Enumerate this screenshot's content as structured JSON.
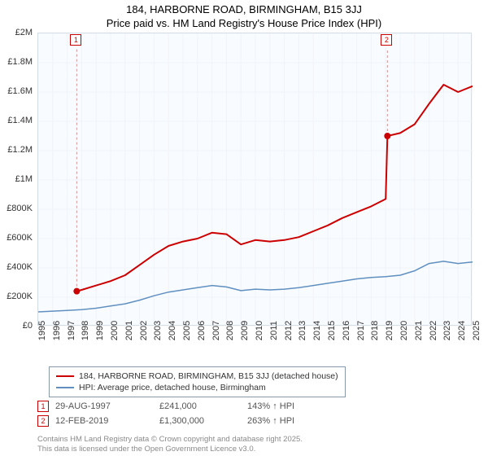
{
  "title_main": "184, HARBORNE ROAD, BIRMINGHAM, B15 3JJ",
  "title_sub": "Price paid vs. HM Land Registry's House Price Index (HPI)",
  "background_color": "#ffffff",
  "plot_bg": "#f8fbff",
  "plot_border": "#d5dde5",
  "grid_color": "#f0f3f7",
  "chart": {
    "type": "line",
    "xlim": [
      1995,
      2025
    ],
    "ylim": [
      0,
      2000000
    ],
    "y_ticks": [
      0,
      200000,
      400000,
      600000,
      800000,
      1000000,
      1200000,
      1400000,
      1600000,
      1800000,
      2000000
    ],
    "y_tick_labels": [
      "£0",
      "£200K",
      "£400K",
      "£600K",
      "£800K",
      "£1M",
      "£1.2M",
      "£1.4M",
      "£1.6M",
      "£1.8M",
      "£2M"
    ],
    "x_ticks": [
      1995,
      1996,
      1997,
      1998,
      1999,
      2000,
      2001,
      2002,
      2003,
      2004,
      2005,
      2006,
      2007,
      2008,
      2009,
      2010,
      2011,
      2012,
      2013,
      2014,
      2015,
      2016,
      2017,
      2018,
      2019,
      2020,
      2021,
      2022,
      2023,
      2024,
      2025
    ],
    "series": [
      {
        "name": "price_paid",
        "label": "184, HARBORNE ROAD, BIRMINGHAM, B15 3JJ (detached house)",
        "color": "#cc0000",
        "line_width": 2,
        "points": [
          [
            1997.66,
            241000
          ],
          [
            1998,
            250000
          ],
          [
            1999,
            280000
          ],
          [
            2000,
            310000
          ],
          [
            2001,
            350000
          ],
          [
            2002,
            420000
          ],
          [
            2003,
            490000
          ],
          [
            2004,
            550000
          ],
          [
            2005,
            580000
          ],
          [
            2006,
            600000
          ],
          [
            2007,
            640000
          ],
          [
            2008,
            630000
          ],
          [
            2009,
            560000
          ],
          [
            2010,
            590000
          ],
          [
            2011,
            580000
          ],
          [
            2012,
            590000
          ],
          [
            2013,
            610000
          ],
          [
            2014,
            650000
          ],
          [
            2015,
            690000
          ],
          [
            2016,
            740000
          ],
          [
            2017,
            780000
          ],
          [
            2018,
            820000
          ],
          [
            2019.0,
            870000
          ],
          [
            2019.12,
            1300000
          ],
          [
            2020,
            1320000
          ],
          [
            2021,
            1380000
          ],
          [
            2022,
            1520000
          ],
          [
            2023,
            1650000
          ],
          [
            2024,
            1600000
          ],
          [
            2025,
            1640000
          ]
        ]
      },
      {
        "name": "hpi",
        "label": "HPI: Average price, detached house, Birmingham",
        "color": "#6090c0",
        "line_width": 1.5,
        "points": [
          [
            1995,
            100000
          ],
          [
            1996,
            105000
          ],
          [
            1997,
            110000
          ],
          [
            1998,
            115000
          ],
          [
            1999,
            125000
          ],
          [
            2000,
            140000
          ],
          [
            2001,
            155000
          ],
          [
            2002,
            180000
          ],
          [
            2003,
            210000
          ],
          [
            2004,
            235000
          ],
          [
            2005,
            250000
          ],
          [
            2006,
            265000
          ],
          [
            2007,
            280000
          ],
          [
            2008,
            270000
          ],
          [
            2009,
            245000
          ],
          [
            2010,
            255000
          ],
          [
            2011,
            250000
          ],
          [
            2012,
            255000
          ],
          [
            2013,
            265000
          ],
          [
            2014,
            280000
          ],
          [
            2015,
            295000
          ],
          [
            2016,
            310000
          ],
          [
            2017,
            325000
          ],
          [
            2018,
            335000
          ],
          [
            2019,
            340000
          ],
          [
            2020,
            350000
          ],
          [
            2021,
            380000
          ],
          [
            2022,
            430000
          ],
          [
            2023,
            445000
          ],
          [
            2024,
            430000
          ],
          [
            2025,
            440000
          ]
        ]
      }
    ],
    "sale_markers": [
      {
        "id": "1",
        "x": 1997.66,
        "y": 241000,
        "date": "29-AUG-1997",
        "price": "£241,000",
        "delta": "143% ↑ HPI"
      },
      {
        "id": "2",
        "x": 2019.12,
        "y": 1300000,
        "date": "12-FEB-2019",
        "price": "£1,300,000",
        "delta": "263% ↑ HPI"
      }
    ]
  },
  "legend": {
    "border_color": "#8899aa"
  },
  "attribution_line1": "Contains HM Land Registry data © Crown copyright and database right 2025.",
  "attribution_line2": "This data is licensed under the Open Government Licence v3.0."
}
